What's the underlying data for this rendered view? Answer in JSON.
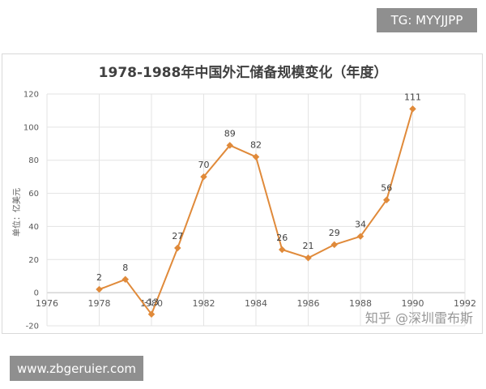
{
  "watermark_top": "TG: MYYJJPP",
  "watermark_bottom": "www.zbgeruier.com",
  "watermark_chart": "知乎 @深圳雷布斯",
  "chart_data": {
    "type": "line",
    "title": "1978-1988年中国外汇储备规模变化（年度）",
    "ylabel": "单位：亿美元",
    "xlabel": "",
    "xlim": [
      1976,
      1992
    ],
    "ylim": [
      -20,
      120
    ],
    "x_ticks": [
      1976,
      1978,
      1980,
      1982,
      1984,
      1986,
      1988,
      1990,
      1992
    ],
    "y_ticks": [
      -20,
      0,
      20,
      40,
      60,
      80,
      100,
      120
    ],
    "x": [
      1978,
      1979,
      1980,
      1981,
      1982,
      1983,
      1984,
      1985,
      1986,
      1987,
      1988,
      1989,
      1990
    ],
    "values": [
      2,
      8,
      -13,
      27,
      70,
      89,
      82,
      26,
      21,
      29,
      34,
      56,
      111
    ],
    "data_labels": [
      "2",
      "8",
      "-13",
      "27",
      "70",
      "89",
      "82",
      "26",
      "21",
      "29",
      "34",
      "56",
      "111"
    ],
    "color": "#e08a3a",
    "grid": true,
    "legend": "none"
  }
}
